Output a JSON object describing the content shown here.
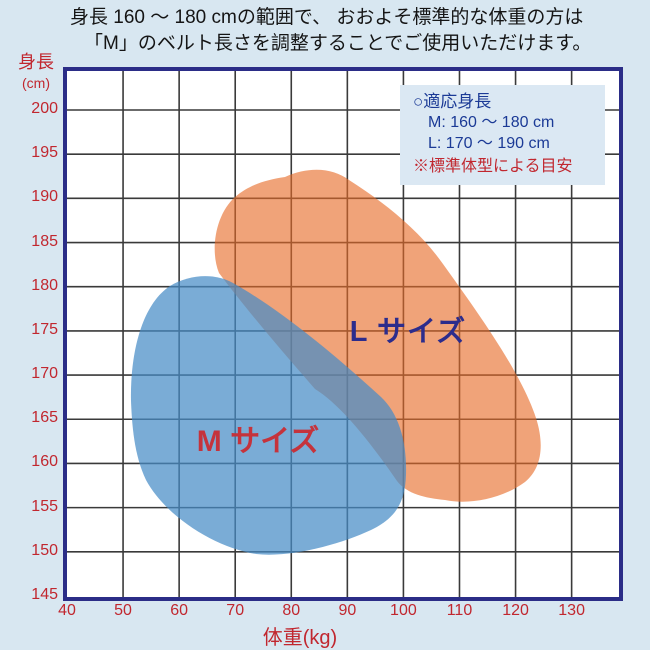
{
  "page": {
    "background_color": "#d8e7f1",
    "title_line1": "身長 160 ～ 180 cmの範囲で、 おおよそ標準的な体重の方は",
    "title_line2": "「M」のベルト長さを調整することでご使用いただけます。"
  },
  "chart_data": {
    "type": "area",
    "title": "",
    "xlabel": "体重(kg)",
    "ylabel_line1": "身長",
    "ylabel_line2": "(cm)",
    "x_ticks": [
      40,
      50,
      60,
      70,
      80,
      90,
      100,
      110,
      120,
      130
    ],
    "y_ticks": [
      200,
      195,
      190,
      185,
      180,
      175,
      170,
      165,
      160,
      155,
      150,
      145
    ],
    "xlim": [
      40,
      139
    ],
    "ylim": [
      145,
      204
    ],
    "grid": true,
    "regions": [
      {
        "label": "M サイズ",
        "approx_weight_range_kg": [
          52,
          101
        ],
        "approx_height_range_cm": [
          149,
          180
        ]
      },
      {
        "label": "L サイズ",
        "approx_weight_range_kg": [
          67,
          125
        ],
        "approx_height_range_cm": [
          155,
          192
        ]
      }
    ],
    "legend": {
      "heading": "○適応身長",
      "items": [
        "M: 160 ～ 180 cm",
        "L: 170 ～ 190 cm"
      ],
      "note": "※標準体型による目安",
      "position": "top-right"
    }
  },
  "colors": {
    "page_bg": "#d8e7f1",
    "axis_label_red": "#c1272f",
    "plot_border_navy": "#2b2d87",
    "grid_line": "#3a3a3a",
    "m_label_red": "#c5333c",
    "l_label_navy": "#2c2c8c",
    "legend_text_navy": "#1b3a96",
    "legend_bg": "#dbe8f3",
    "m_region_blue": "rgba(70,140,198,0.72)",
    "l_region_orange": "rgba(231,106,38,0.62)"
  }
}
